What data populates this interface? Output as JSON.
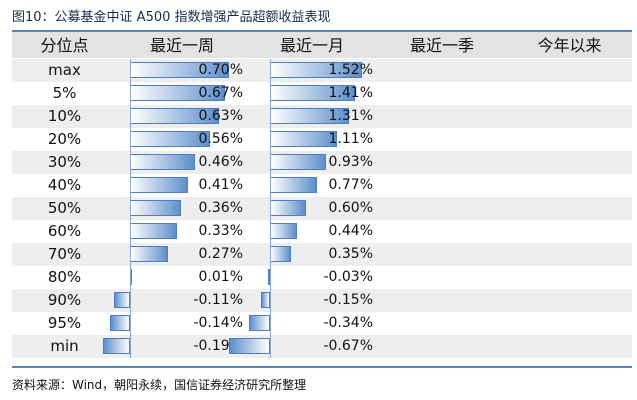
{
  "title": "图10：公募基金中证 A500 指数增强产品超额收益表现",
  "source": "资料来源：Wind，朝阳永续，国信证券经济研究所整理",
  "headers": [
    "分位点",
    "最近一周",
    "最近一月",
    "最近一季",
    "今年以来"
  ],
  "colors": {
    "rule": "#5a87c0",
    "bar": "#5e8fcb",
    "header_band": "#e3e3e3"
  },
  "chart_data": {
    "type": "table",
    "percentiles": [
      "max",
      "5%",
      "10%",
      "20%",
      "30%",
      "40%",
      "50%",
      "60%",
      "70%",
      "80%",
      "90%",
      "95%",
      "min"
    ],
    "series": [
      {
        "name": "最近一周",
        "values": [
          0.7,
          0.67,
          0.63,
          0.56,
          0.46,
          0.41,
          0.36,
          0.33,
          0.27,
          0.01,
          -0.11,
          -0.14,
          -0.19
        ],
        "labels": [
          "0.70%",
          "0.67%",
          "0.63%",
          "0.56%",
          "0.46%",
          "0.41%",
          "0.36%",
          "0.33%",
          "0.27%",
          "0.01%",
          "-0.11%",
          "-0.14%",
          "-0.19%"
        ]
      },
      {
        "name": "最近一月",
        "values": [
          1.52,
          1.41,
          1.31,
          1.11,
          0.93,
          0.77,
          0.6,
          0.44,
          0.35,
          -0.03,
          -0.15,
          -0.34,
          -0.67
        ],
        "labels": [
          "1.52%",
          "1.41%",
          "1.31%",
          "1.11%",
          "0.93%",
          "0.77%",
          "0.60%",
          "0.44%",
          "0.35%",
          "-0.03%",
          "-0.15%",
          "-0.34%",
          "-0.67%"
        ]
      },
      {
        "name": "最近一季",
        "values": [],
        "labels": []
      },
      {
        "name": "今年以来",
        "values": [],
        "labels": []
      }
    ]
  }
}
